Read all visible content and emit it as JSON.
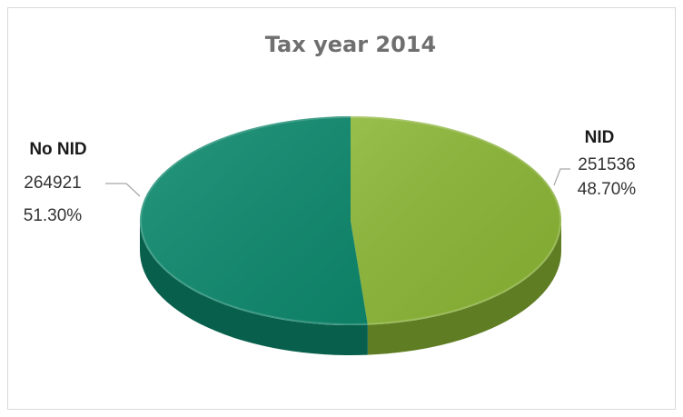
{
  "chart_data": {
    "type": "pie",
    "title": "Tax year 2014",
    "slices": [
      {
        "label": "NID",
        "value": 251536,
        "percent_label": "48.70%",
        "color": "#8ab534",
        "side_color": "#5f7d22"
      },
      {
        "label": "No NID",
        "value": 264921,
        "percent_label": "51.30%",
        "color": "#0e8a6e",
        "side_color": "#08604c"
      }
    ],
    "style": "3d",
    "legend": "none",
    "data_labels": true
  }
}
